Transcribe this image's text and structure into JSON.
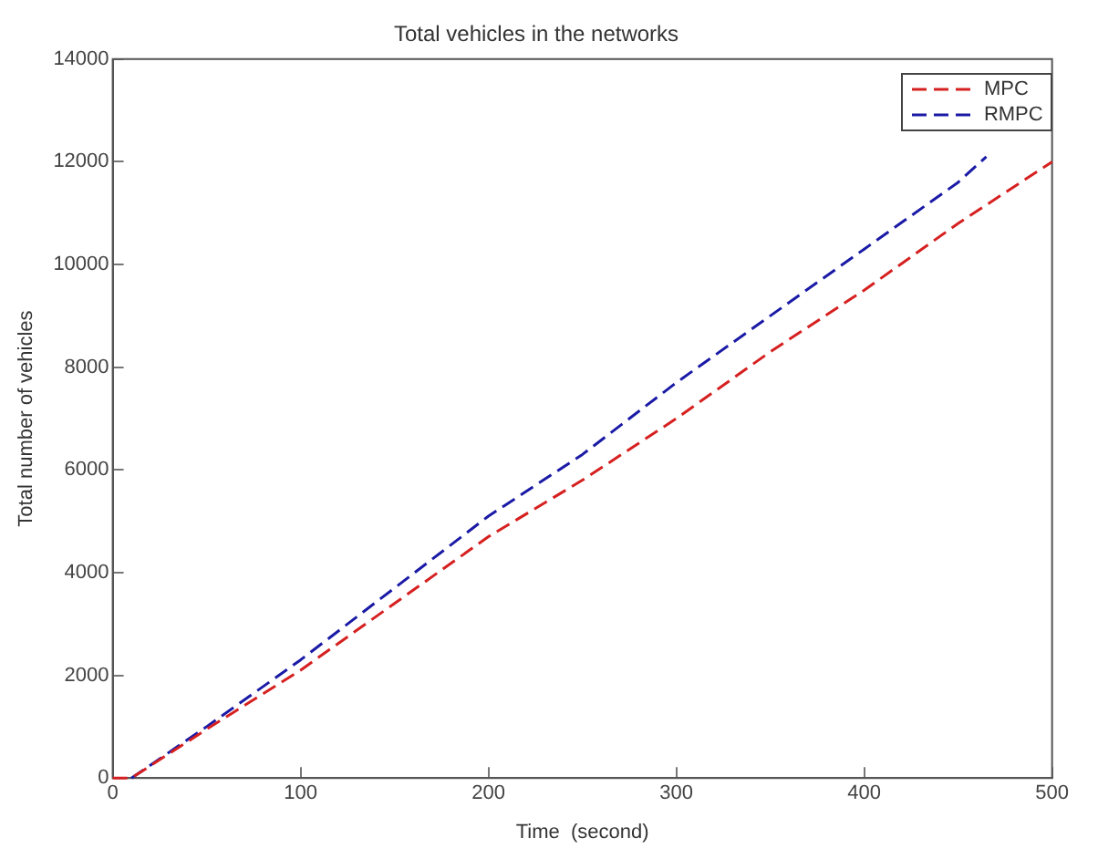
{
  "chart_data": {
    "type": "line",
    "title": "Total vehicles in the networks",
    "xlabel": "Time  (second)",
    "ylabel": "Total number of vehicles",
    "xlim": [
      0,
      500
    ],
    "xticks": [
      0,
      100,
      200,
      300,
      400,
      500
    ],
    "ylim": [
      0,
      14000
    ],
    "yticks": [
      0,
      2000,
      4000,
      6000,
      8000,
      10000,
      12000,
      14000
    ],
    "grid": false,
    "legend": "top right",
    "marker": "none",
    "series": [
      {
        "name": "MPC",
        "color": "#d62020",
        "line_style": "dashed",
        "x": [
          0,
          10,
          50,
          100,
          150,
          200,
          250,
          300,
          350,
          400,
          450,
          500
        ],
        "values": [
          0,
          0,
          950,
          2100,
          3400,
          4700,
          5800,
          7000,
          8300,
          9500,
          10800,
          12000
        ]
      },
      {
        "name": "RMPC",
        "color": "#1a1aa6",
        "line_style": "dashed",
        "x": [
          10,
          50,
          100,
          150,
          200,
          250,
          300,
          350,
          400,
          450,
          465
        ],
        "values": [
          0,
          1000,
          2300,
          3700,
          5100,
          6300,
          7700,
          9000,
          10300,
          11600,
          12100
        ]
      }
    ]
  }
}
